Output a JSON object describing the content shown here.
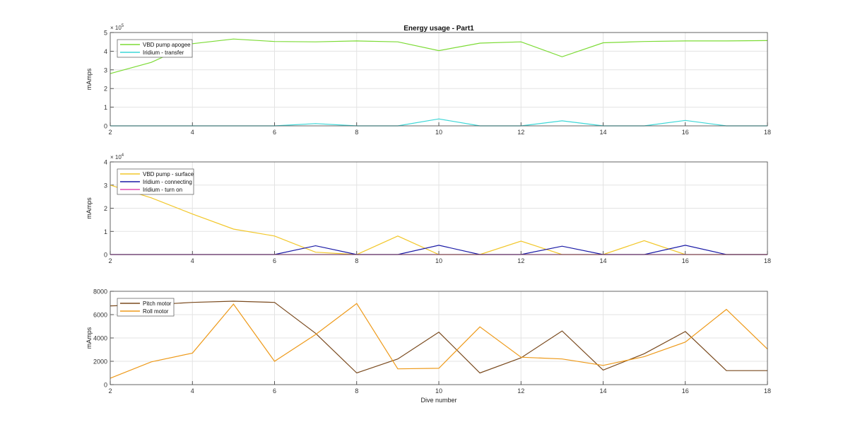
{
  "figure": {
    "title": "Energy usage - Part1"
  },
  "chart_data": [
    {
      "type": "line",
      "title": "Energy usage - Part1",
      "xlabel": "",
      "ylabel": "mAmps",
      "xlim": [
        2,
        18
      ],
      "ylim": [
        0,
        500000
      ],
      "xticks": [
        "2",
        "4",
        "6",
        "8",
        "10",
        "12",
        "14",
        "16",
        "18"
      ],
      "yticks": [
        "0",
        "1",
        "2",
        "3",
        "4",
        "5"
      ],
      "y_exponent": "× 10",
      "y_exponent_power": "5",
      "grid": true,
      "legend_position": "top-left",
      "x": [
        2,
        3,
        4,
        5,
        6,
        7,
        8,
        9,
        10,
        11,
        12,
        13,
        14,
        15,
        16,
        17,
        18
      ],
      "series": [
        {
          "name": "VBD pump apogee",
          "color": "#7cdb35",
          "values": [
            280000,
            340000,
            440000,
            465000,
            452000,
            450000,
            455000,
            450000,
            403000,
            443000,
            450000,
            370000,
            445000,
            452000,
            455000,
            455000,
            457000
          ]
        },
        {
          "name": "Iridium - transfer",
          "color": "#3cd7d7",
          "values": [
            0,
            0,
            0,
            0,
            0,
            12000,
            0,
            0,
            37000,
            0,
            0,
            27000,
            0,
            0,
            29000,
            0,
            0
          ]
        }
      ]
    },
    {
      "type": "line",
      "xlabel": "",
      "ylabel": "mAmps",
      "xlim": [
        2,
        18
      ],
      "ylim": [
        0,
        40000
      ],
      "xticks": [
        "2",
        "4",
        "6",
        "8",
        "10",
        "12",
        "14",
        "16",
        "18"
      ],
      "yticks": [
        "0",
        "1",
        "2",
        "3",
        "4"
      ],
      "y_exponent": "× 10",
      "y_exponent_power": "4",
      "grid": true,
      "legend_position": "top-left",
      "x": [
        2,
        3,
        4,
        5,
        6,
        7,
        8,
        9,
        10,
        11,
        12,
        13,
        14,
        15,
        16,
        17,
        18
      ],
      "series": [
        {
          "name": "VBD pump - surface",
          "color": "#f2c72a",
          "values": [
            30000,
            24500,
            17500,
            11000,
            8000,
            1000,
            0,
            8000,
            0,
            0,
            5800,
            0,
            0,
            6000,
            0,
            0,
            0
          ]
        },
        {
          "name": "Iridium - connecting",
          "color": "#1a1aa6",
          "values": [
            0,
            0,
            0,
            0,
            0,
            3800,
            0,
            0,
            4000,
            0,
            0,
            3600,
            0,
            0,
            4000,
            0,
            0
          ]
        },
        {
          "name": "Iridium - turn on",
          "color": "#e04fb0",
          "values": [
            0,
            0,
            0,
            0,
            0,
            0,
            0,
            0,
            0,
            0,
            0,
            0,
            0,
            0,
            0,
            0,
            0
          ]
        }
      ]
    },
    {
      "type": "line",
      "xlabel": "Dive number",
      "ylabel": "mAmps",
      "xlim": [
        2,
        18
      ],
      "ylim": [
        0,
        8000
      ],
      "xticks": [
        "2",
        "4",
        "6",
        "8",
        "10",
        "12",
        "14",
        "16",
        "18"
      ],
      "yticks": [
        "0",
        "2000",
        "4000",
        "6000",
        "8000"
      ],
      "grid": true,
      "legend_position": "top-left",
      "x": [
        2,
        3,
        4,
        5,
        6,
        7,
        8,
        9,
        10,
        11,
        12,
        13,
        14,
        15,
        16,
        17,
        18
      ],
      "series": [
        {
          "name": "Pitch motor",
          "color": "#7a4a1e",
          "values": [
            6750,
            6850,
            7050,
            7150,
            7050,
            4400,
            1000,
            2200,
            4500,
            1000,
            2300,
            4600,
            1250,
            2650,
            4550,
            1200,
            1200
          ]
        },
        {
          "name": "Roll motor",
          "color": "#ee9a1a",
          "values": [
            550,
            1950,
            2700,
            6900,
            2000,
            4300,
            6950,
            1350,
            1400,
            4950,
            2350,
            2200,
            1650,
            2400,
            3650,
            6450,
            3050
          ]
        }
      ]
    }
  ]
}
